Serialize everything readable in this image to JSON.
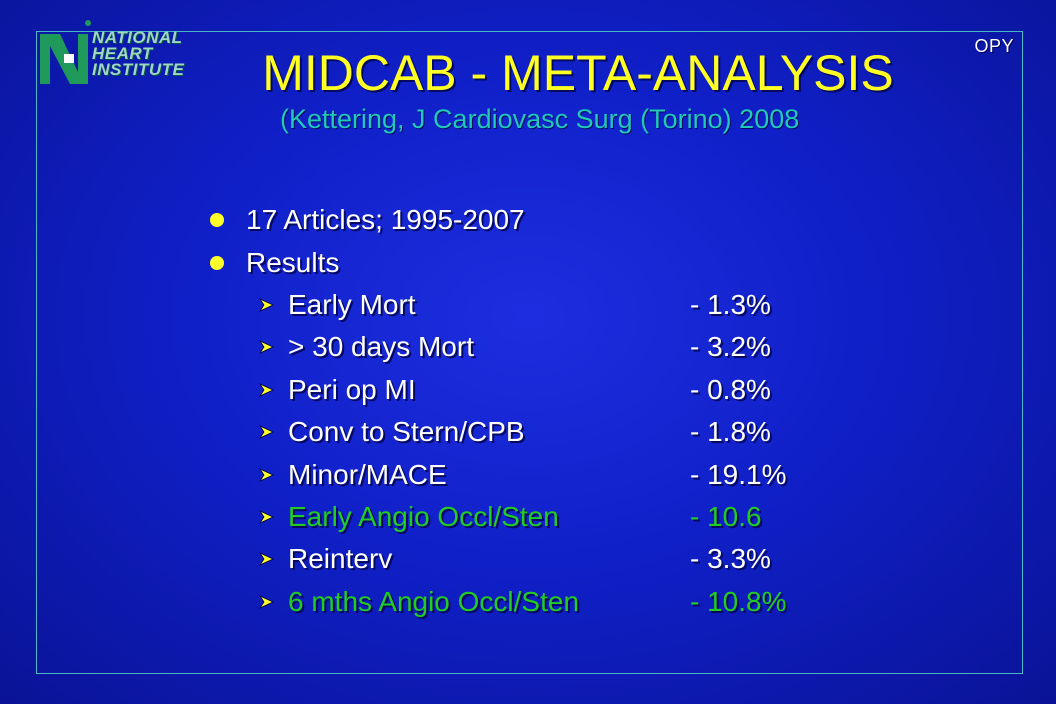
{
  "logo": {
    "line1": "NATIONAL",
    "line2": "HEART",
    "line3": "INSTITUTE"
  },
  "corner_mark": "OPY",
  "title": "MIDCAB - META-ANALYSIS",
  "subtitle": "(Kettering, J Cardiovasc Surg (Torino) 2008",
  "bullets": [
    {
      "text": "17 Articles; 1995-2007"
    },
    {
      "text": "Results"
    }
  ],
  "results": [
    {
      "label": "Early Mort",
      "value": "- 1.3%",
      "highlight": false
    },
    {
      "label": "> 30 days Mort",
      "value": "- 3.2%",
      "highlight": false
    },
    {
      "label": "Peri op MI",
      "value": "- 0.8%",
      "highlight": false
    },
    {
      "label": "Conv to Stern/CPB",
      "value": "- 1.8%",
      "highlight": false
    },
    {
      "label": "Minor/MACE",
      "value": "- 19.1%",
      "highlight": false
    },
    {
      "label": "Early Angio Occl/Sten",
      "value": "- 10.6",
      "highlight": true
    },
    {
      "label": "Reinterv",
      "value": "- 3.3%",
      "highlight": false
    },
    {
      "label": "6 mths Angio Occl/Sten",
      "value": "- 10.8%",
      "highlight": true
    }
  ],
  "colors": {
    "background": "#1020c8",
    "title": "#ffff24",
    "subtitle": "#22c8b8",
    "text": "#ffffff",
    "highlight": "#22cc22",
    "bullet": "#ffff2a",
    "frame": "#49b7c4"
  }
}
